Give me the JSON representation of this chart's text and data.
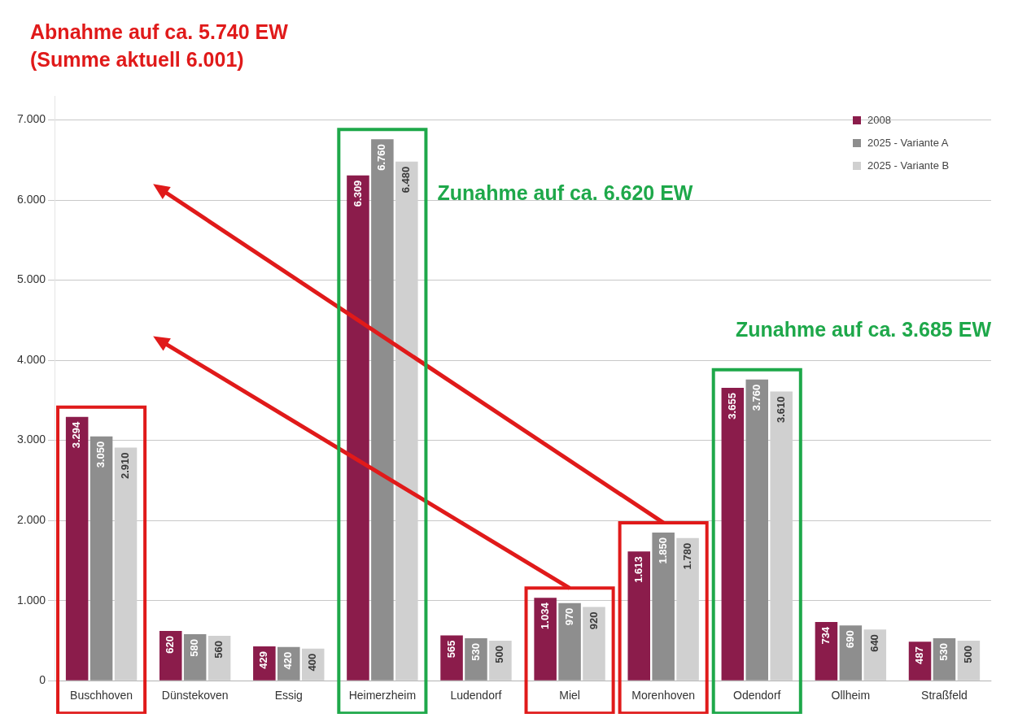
{
  "chart_data": {
    "type": "bar",
    "categories": [
      "Buschhoven",
      "Dünstekoven",
      "Essig",
      "Heimerzheim",
      "Ludendorf",
      "Miel",
      "Morenhoven",
      "Odendorf",
      "Ollheim",
      "Straßfeld"
    ],
    "series": [
      {
        "name": "2008",
        "color": "#8b1c4b",
        "values": [
          3294,
          620,
          429,
          6309,
          565,
          1034,
          1613,
          3655,
          734,
          487
        ],
        "value_labels": [
          "3.294",
          "620",
          "429",
          "6.309",
          "565",
          "1.034",
          "1.613",
          "3.655",
          "734",
          "487"
        ]
      },
      {
        "name": "2025 - Variante A",
        "color": "#8e8e8e",
        "values": [
          3050,
          580,
          420,
          6760,
          530,
          970,
          1850,
          3760,
          690,
          530
        ],
        "value_labels": [
          "3.050",
          "580",
          "420",
          "6.760",
          "530",
          "970",
          "1.850",
          "3.760",
          "690",
          "530"
        ]
      },
      {
        "name": "2025 - Variante B",
        "color": "#d0d0d0",
        "values": [
          2910,
          560,
          400,
          6480,
          500,
          920,
          1780,
          3610,
          640,
          500
        ],
        "value_labels": [
          "2.910",
          "560",
          "400",
          "6.480",
          "500",
          "920",
          "1.780",
          "3.610",
          "640",
          "500"
        ]
      }
    ],
    "ylim": [
      0,
      7300
    ],
    "yticks": [
      {
        "value": 0,
        "label": "0"
      },
      {
        "value": 1000,
        "label": "1.000"
      },
      {
        "value": 2000,
        "label": "2.000"
      },
      {
        "value": 3000,
        "label": "3.000"
      },
      {
        "value": 4000,
        "label": "4.000"
      },
      {
        "value": 5000,
        "label": "5.000"
      },
      {
        "value": 6000,
        "label": "6.000"
      },
      {
        "value": 7000,
        "label": "7.000"
      }
    ],
    "grid": "y",
    "legend": "top right",
    "annotations": [
      "Abnahme auf ca. 5.740 EW",
      "(Summe aktuell 6.001)",
      "Zunahme auf ca. 6.620 EW",
      "Zunahme auf ca. 3.685 EW"
    ]
  }
}
